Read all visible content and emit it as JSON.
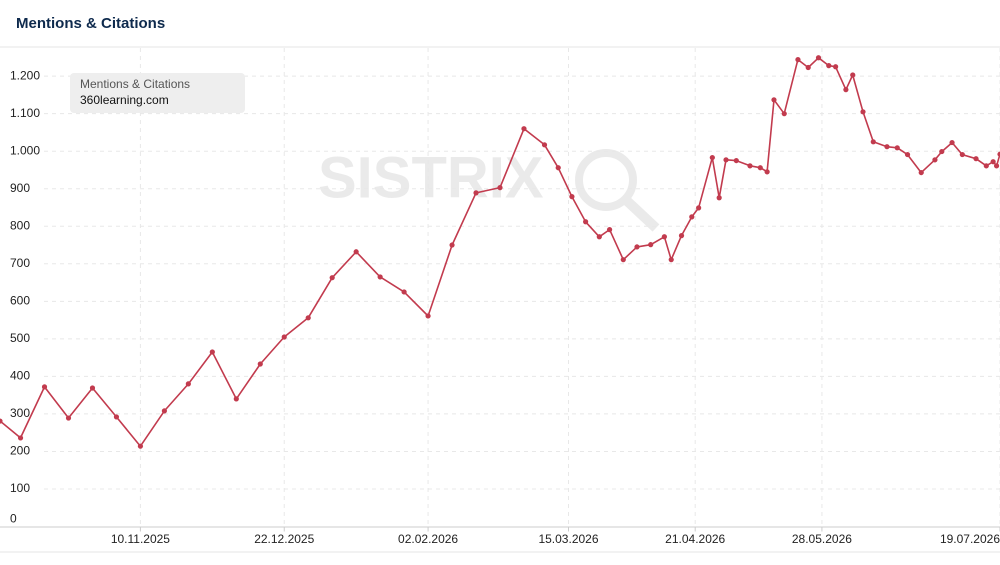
{
  "chart_data": {
    "type": "line",
    "title": "Mentions & Citations",
    "legend_title": "Mentions & Citations",
    "watermark": "SISTRIX",
    "grid": true,
    "xlim": [
      "30.09.2025",
      "19.07.2026"
    ],
    "xticks": [
      "10.11.2025",
      "22.12.2025",
      "02.02.2026",
      "15.03.2026",
      "21.04.2026",
      "28.05.2026",
      "19.07.2026"
    ],
    "ylim": [
      0,
      1275
    ],
    "yticks": [
      0,
      100,
      200,
      300,
      400,
      500,
      600,
      700,
      800,
      900,
      {
        "value": 1000,
        "label": "1.000"
      },
      {
        "value": 1100,
        "label": "1.100"
      },
      {
        "value": 1200,
        "label": "1.200"
      }
    ],
    "x": [
      "30.09.2025",
      "06.10.2025",
      "13.10.2025",
      "20.10.2025",
      "27.10.2025",
      "03.11.2025",
      "10.11.2025",
      "17.11.2025",
      "24.11.2025",
      "01.12.2025",
      "08.12.2025",
      "15.12.2025",
      "22.12.2025",
      "29.12.2025",
      "05.01.2026",
      "12.01.2026",
      "19.01.2026",
      "26.01.2026",
      "02.02.2026",
      "09.02.2026",
      "16.02.2026",
      "23.02.2026",
      "02.03.2026",
      "08.03.2026",
      "12.03.2026",
      "16.03.2026",
      "20.03.2026",
      "24.03.2026",
      "27.03.2026",
      "31.03.2026",
      "04.04.2026",
      "08.04.2026",
      "12.04.2026",
      "14.04.2026",
      "17.04.2026",
      "20.04.2026",
      "22.04.2026",
      "26.04.2026",
      "28.04.2026",
      "30.04.2026",
      "03.05.2026",
      "07.05.2026",
      "10.05.2026",
      "12.05.2026",
      "14.05.2026",
      "17.05.2026",
      "21.05.2026",
      "24.05.2026",
      "27.05.2026",
      "30.05.2026",
      "01.06.2026",
      "04.06.2026",
      "06.06.2026",
      "09.06.2026",
      "12.06.2026",
      "16.06.2026",
      "19.06.2026",
      "22.06.2026",
      "26.06.2026",
      "30.06.2026",
      "02.07.2026",
      "05.07.2026",
      "08.07.2026",
      "12.07.2026",
      "15.07.2026",
      "17.07.2026",
      "18.07.2026",
      "19.07.2026"
    ],
    "series": [
      {
        "name": "360learning.com",
        "color": "#c23b4e",
        "values": [
          281,
          236,
          372,
          289,
          369,
          292,
          214,
          308,
          380,
          465,
          340,
          433,
          505,
          556,
          663,
          732,
          665,
          625,
          561,
          750,
          889,
          903,
          1060,
          1017,
          956,
          879,
          812,
          772,
          791,
          711,
          745,
          751,
          772,
          711,
          775,
          825,
          849,
          983,
          876,
          977,
          975,
          961,
          956,
          945,
          1137,
          1100,
          1244,
          1223,
          1249,
          1228,
          1225,
          1164,
          1203,
          1105,
          1025,
          1012,
          1009,
          991,
          943,
          977,
          999,
          1023,
          991,
          980,
          961,
          972,
          961,
          992
        ]
      }
    ]
  }
}
